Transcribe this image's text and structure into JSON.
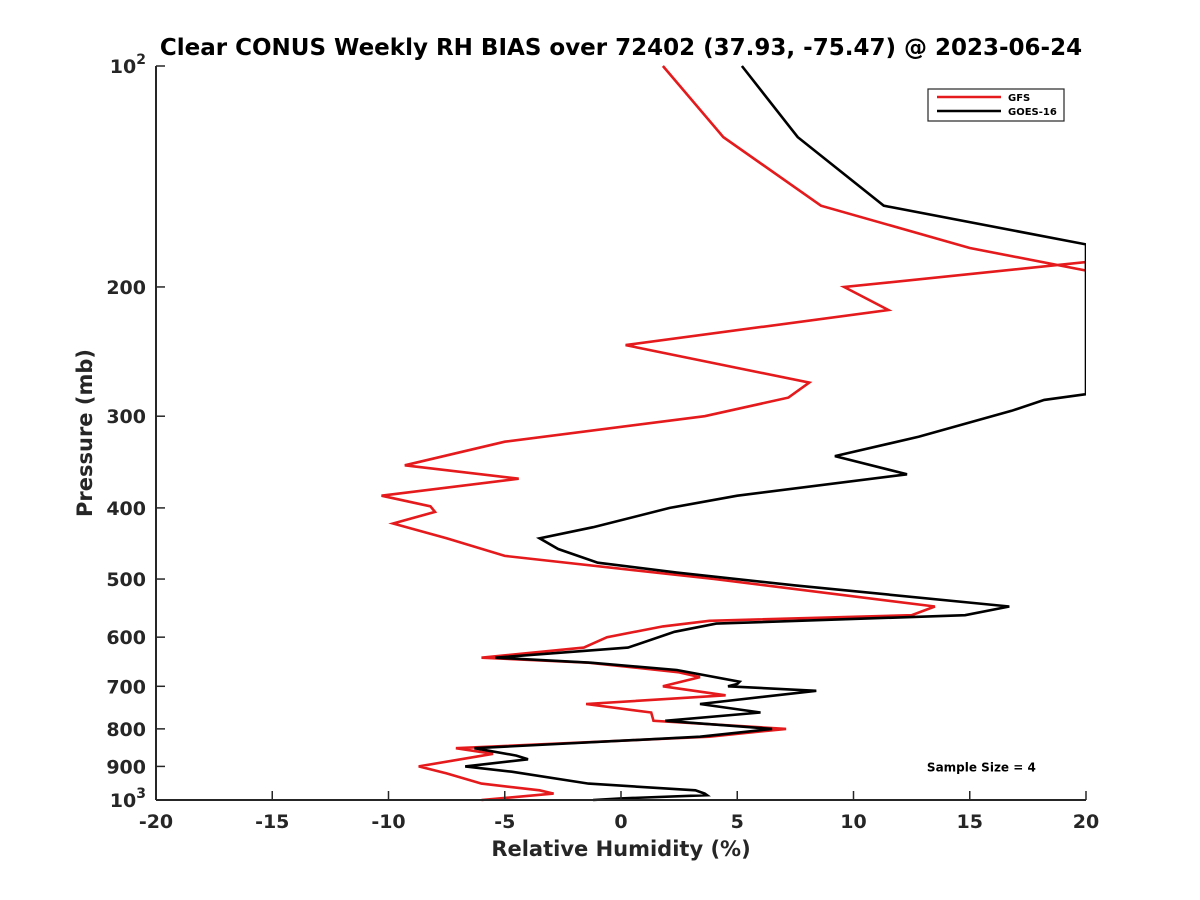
{
  "chart_data": {
    "type": "line",
    "title": "Clear CONUS Weekly RH BIAS over 72402 (37.93, -75.47) @ 2023-06-24",
    "xlabel": "Relative Humidity (%)",
    "ylabel": "Pressure (mb)",
    "xlim": [
      -20,
      20
    ],
    "ylim": [
      100,
      1000
    ],
    "yscale": "log",
    "y_reversed": true,
    "grid": false,
    "legend_position": "top-right",
    "x_ticks": [
      {
        "value": -20,
        "label": "-20"
      },
      {
        "value": -15,
        "label": "-15"
      },
      {
        "value": -10,
        "label": "-10"
      },
      {
        "value": -5,
        "label": "-5"
      },
      {
        "value": 0,
        "label": "0"
      },
      {
        "value": 5,
        "label": "5"
      },
      {
        "value": 10,
        "label": "10"
      },
      {
        "value": 15,
        "label": "15"
      },
      {
        "value": 20,
        "label": "20"
      }
    ],
    "y_ticks": [
      {
        "value": 100,
        "base": "10",
        "exp": "2"
      },
      {
        "value": 200,
        "label": "200"
      },
      {
        "value": 300,
        "label": "300"
      },
      {
        "value": 400,
        "label": "400"
      },
      {
        "value": 500,
        "label": "500"
      },
      {
        "value": 600,
        "label": "600"
      },
      {
        "value": 700,
        "label": "700"
      },
      {
        "value": 800,
        "label": "800"
      },
      {
        "value": 900,
        "label": "900"
      },
      {
        "value": 1000,
        "base": "10",
        "exp": "3"
      }
    ],
    "series": [
      {
        "name": "GFS",
        "color": "#e41a1c",
        "points": [
          [
            1.8,
            100
          ],
          [
            4.4,
            125
          ],
          [
            8.6,
            155
          ],
          [
            15.0,
            177
          ],
          [
            20.0,
            190
          ],
          [
            20.0,
            185
          ],
          [
            9.6,
            200
          ],
          [
            11.5,
            215
          ],
          [
            0.2,
            240
          ],
          [
            8.1,
            270
          ],
          [
            7.2,
            283
          ],
          [
            3.6,
            300
          ],
          [
            -5.0,
            325
          ],
          [
            -9.3,
            350
          ],
          [
            -4.4,
            365
          ],
          [
            -10.3,
            385
          ],
          [
            -8.2,
            398
          ],
          [
            -8.0,
            405
          ],
          [
            -9.8,
            420
          ],
          [
            -7.5,
            440
          ],
          [
            -5.0,
            465
          ],
          [
            4.0,
            500
          ],
          [
            13.5,
            545
          ],
          [
            12.5,
            560
          ],
          [
            3.8,
            570
          ],
          [
            1.8,
            580
          ],
          [
            -0.6,
            600
          ],
          [
            -1.6,
            620
          ],
          [
            -6.0,
            640
          ],
          [
            -1.4,
            650
          ],
          [
            2.5,
            670
          ],
          [
            3.4,
            680
          ],
          [
            1.8,
            700
          ],
          [
            4.5,
            720
          ],
          [
            -1.5,
            740
          ],
          [
            1.3,
            760
          ],
          [
            1.4,
            780
          ],
          [
            7.1,
            800
          ],
          [
            3.8,
            820
          ],
          [
            -7.1,
            850
          ],
          [
            -5.5,
            865
          ],
          [
            -8.7,
            900
          ],
          [
            -7.5,
            920
          ],
          [
            -6.0,
            950
          ],
          [
            -3.5,
            970
          ],
          [
            -2.9,
            980
          ],
          [
            -6.0,
            1000
          ]
        ]
      },
      {
        "name": "GOES-16",
        "color": "#000000",
        "points": [
          [
            5.2,
            100
          ],
          [
            7.6,
            125
          ],
          [
            11.3,
            155
          ],
          [
            20.0,
            175
          ],
          [
            20.0,
            280
          ],
          [
            18.2,
            285
          ],
          [
            16.8,
            295
          ],
          [
            12.8,
            320
          ],
          [
            9.2,
            340
          ],
          [
            12.3,
            360
          ],
          [
            5.0,
            385
          ],
          [
            2.1,
            400
          ],
          [
            -1.2,
            425
          ],
          [
            -3.5,
            440
          ],
          [
            -2.7,
            455
          ],
          [
            -1.0,
            475
          ],
          [
            2.4,
            490
          ],
          [
            7.5,
            510
          ],
          [
            16.7,
            545
          ],
          [
            14.8,
            560
          ],
          [
            4.1,
            575
          ],
          [
            2.3,
            590
          ],
          [
            0.3,
            620
          ],
          [
            -5.4,
            640
          ],
          [
            -1.3,
            650
          ],
          [
            2.4,
            665
          ],
          [
            5.1,
            690
          ],
          [
            5.0,
            695
          ],
          [
            4.6,
            700
          ],
          [
            8.4,
            710
          ],
          [
            3.4,
            740
          ],
          [
            6.0,
            760
          ],
          [
            1.9,
            780
          ],
          [
            6.5,
            800
          ],
          [
            3.4,
            820
          ],
          [
            -6.3,
            850
          ],
          [
            -4.5,
            870
          ],
          [
            -4.0,
            880
          ],
          [
            -6.7,
            900
          ],
          [
            -4.7,
            915
          ],
          [
            -1.4,
            950
          ],
          [
            3.2,
            970
          ],
          [
            3.6,
            980
          ],
          [
            3.7,
            985
          ],
          [
            0.0,
            995
          ],
          [
            -1.2,
            1000
          ]
        ]
      }
    ],
    "annotations": [
      {
        "text": "Sample Size = 4",
        "x": 15.5,
        "y": 900
      }
    ]
  }
}
